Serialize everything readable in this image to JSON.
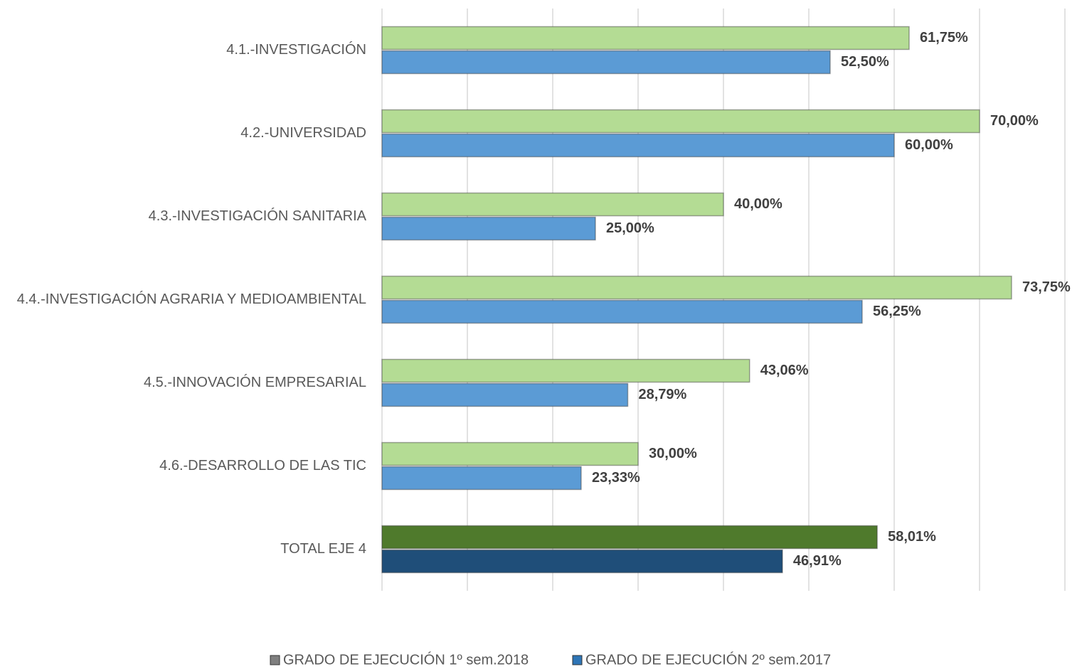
{
  "chart_data": {
    "type": "hbar",
    "categories": [
      "4.1.-INVESTIGACIÓN",
      "4.2.-UNIVERSIDAD",
      "4.3.-INVESTIGACIÓN SANITARIA",
      "4.4.-INVESTIGACIÓN AGRARIA Y MEDIOAMBIENTAL",
      "4.5.-INNOVACIÓN EMPRESARIAL",
      "4.6.-DESARROLLO DE LAS TIC",
      "TOTAL EJE 4"
    ],
    "series": [
      {
        "name": "GRADO DE EJECUCIÓN 1º sem.2018",
        "color": "#b4dc94",
        "legend_color": "#7f7f7f",
        "colors": [
          "#b4dc94",
          "#b4dc94",
          "#b4dc94",
          "#b4dc94",
          "#b4dc94",
          "#b4dc94",
          "#4f7a2c"
        ],
        "values": [
          61.75,
          70,
          40,
          73.75,
          43.06,
          30,
          58.01
        ],
        "value_labels": [
          "61,75%",
          "70,00%",
          "40,00%",
          "73,75%",
          "43,06%",
          "30,00%",
          "58,01%"
        ]
      },
      {
        "name": "GRADO DE EJECUCIÓN 2º sem.2017",
        "color": "#5b9bd5",
        "legend_color": "#2e75b6",
        "colors": [
          "#5b9bd5",
          "#5b9bd5",
          "#5b9bd5",
          "#5b9bd5",
          "#5b9bd5",
          "#5b9bd5",
          "#1f4e79"
        ],
        "values": [
          52.5,
          60,
          25,
          56.25,
          28.79,
          23.33,
          46.91
        ],
        "value_labels": [
          "52,50%",
          "60,00%",
          "25,00%",
          "56,25%",
          "28,79%",
          "23,33%",
          "46,91%"
        ]
      }
    ],
    "xlim": [
      0,
      80
    ],
    "xticks": [
      0,
      10,
      20,
      30,
      40,
      50,
      60,
      70,
      80
    ],
    "grid": true,
    "legend": "bottom"
  }
}
